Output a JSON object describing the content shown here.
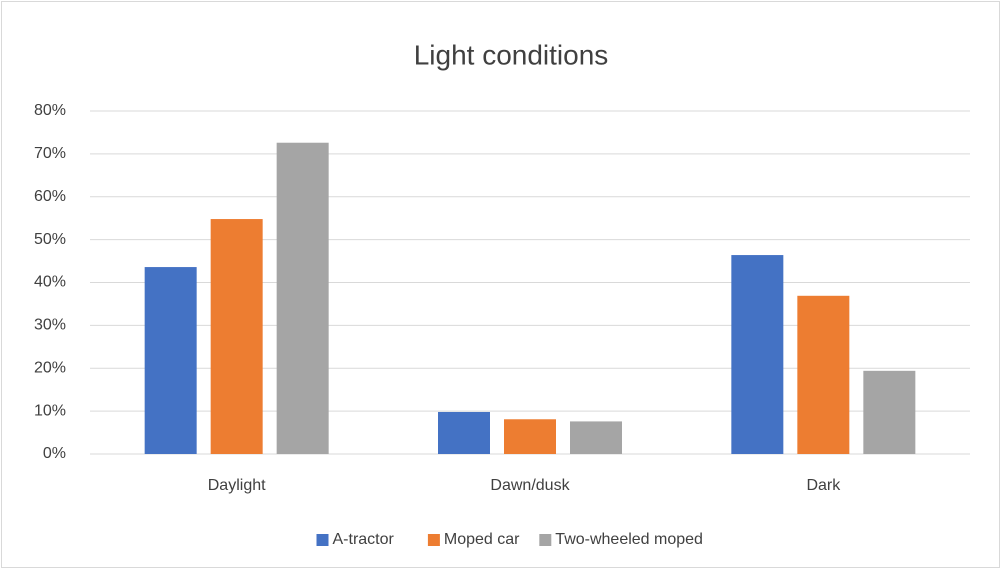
{
  "chart_data": {
    "type": "bar",
    "title": "Light conditions",
    "categories": [
      "Daylight",
      "Dawn/dusk",
      "Dark"
    ],
    "series": [
      {
        "name": "A-tractor",
        "color": "#4472c4",
        "values": [
          43.6,
          9.8,
          46.4
        ]
      },
      {
        "name": "Moped car",
        "color": "#ed7d31",
        "values": [
          54.8,
          8.1,
          36.9
        ]
      },
      {
        "name": "Two-wheeled moped",
        "color": "#a5a5a5",
        "values": [
          72.6,
          7.6,
          19.4
        ]
      }
    ],
    "ylim": [
      0,
      80
    ],
    "yticks": [
      {
        "value": 0,
        "label": "0%"
      },
      {
        "value": 10,
        "label": "10%"
      },
      {
        "value": 20,
        "label": "20%"
      },
      {
        "value": 30,
        "label": "30%"
      },
      {
        "value": 40,
        "label": "40%"
      },
      {
        "value": 50,
        "label": "50%"
      },
      {
        "value": 60,
        "label": "60%"
      },
      {
        "value": 70,
        "label": "70%"
      },
      {
        "value": 80,
        "label": "80%"
      }
    ],
    "grid": true,
    "legend": "bottom"
  }
}
